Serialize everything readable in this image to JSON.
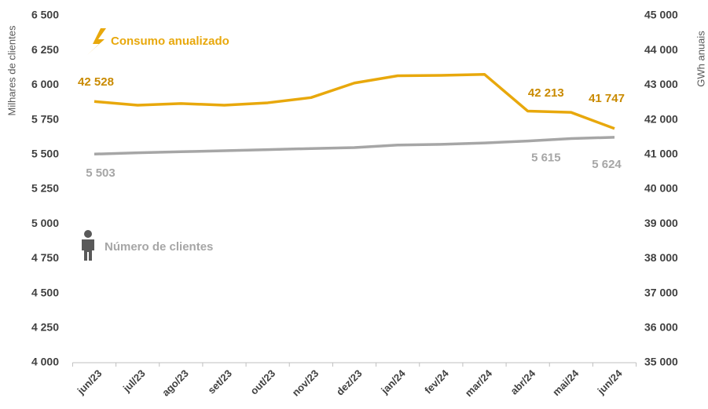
{
  "chart_data": {
    "type": "line",
    "y_label": "Milhares de clientes",
    "y2_label": "GWh anuais",
    "categories": [
      "jun/23",
      "jul/23",
      "ago/23",
      "set/23",
      "out/23",
      "nov/23",
      "dez/23",
      "jan/24",
      "fev/24",
      "mar/24",
      "abr/24",
      "mai/24",
      "jun/24"
    ],
    "series": [
      {
        "name": "Consumo anualizado",
        "color": "#E8A80C",
        "axis": "y2",
        "values": [
          42528,
          42420,
          42470,
          42420,
          42490,
          42640,
          43060,
          43270,
          43280,
          43310,
          42250,
          42213,
          41747
        ],
        "value_labels": [
          "42 528",
          null,
          null,
          null,
          null,
          null,
          null,
          null,
          null,
          null,
          null,
          "42 213",
          "41 747"
        ]
      },
      {
        "name": "Número de clientes",
        "color": "#A6A6A6",
        "axis": "y",
        "values": [
          5503,
          5512,
          5520,
          5527,
          5535,
          5543,
          5550,
          5568,
          5573,
          5583,
          5597,
          5615,
          5624
        ],
        "value_labels": [
          "5 503",
          null,
          null,
          null,
          null,
          null,
          null,
          null,
          null,
          null,
          null,
          "5 615",
          "5 624"
        ]
      }
    ],
    "ylim": [
      4000,
      6500
    ],
    "yticks": [
      {
        "value": 4000,
        "label": "4 000"
      },
      {
        "value": 4250,
        "label": "4 250"
      },
      {
        "value": 4500,
        "label": "4 500"
      },
      {
        "value": 4750,
        "label": "4 750"
      },
      {
        "value": 5000,
        "label": "5 000"
      },
      {
        "value": 5250,
        "label": "5 250"
      },
      {
        "value": 5500,
        "label": "5 500"
      },
      {
        "value": 5750,
        "label": "5 750"
      },
      {
        "value": 6000,
        "label": "6 000"
      },
      {
        "value": 6250,
        "label": "6 250"
      },
      {
        "value": 6500,
        "label": "6 500"
      }
    ],
    "y2lim": [
      35000,
      45000
    ],
    "y2ticks": [
      {
        "value": 35000,
        "label": "35 000"
      },
      {
        "value": 36000,
        "label": "36 000"
      },
      {
        "value": 37000,
        "label": "37 000"
      },
      {
        "value": 38000,
        "label": "38 000"
      },
      {
        "value": 39000,
        "label": "39 000"
      },
      {
        "value": 40000,
        "label": "40 000"
      },
      {
        "value": 41000,
        "label": "41 000"
      },
      {
        "value": 42000,
        "label": "42 000"
      },
      {
        "value": 43000,
        "label": "43 000"
      },
      {
        "value": 44000,
        "label": "44 000"
      },
      {
        "value": 45000,
        "label": "45 000"
      }
    ],
    "grid": false
  }
}
